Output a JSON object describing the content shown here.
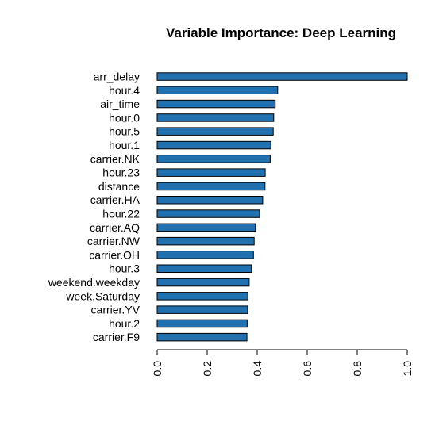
{
  "chart_data": {
    "type": "bar",
    "orientation": "horizontal",
    "title": "Variable Importance: Deep Learning",
    "xlabel": "",
    "ylabel": "",
    "categories": [
      "arr_delay",
      "hour.4",
      "air_time",
      "hour.0",
      "hour.5",
      "hour.1",
      "carrier.NK",
      "hour.23",
      "distance",
      "carrier.HA",
      "hour.22",
      "carrier.AQ",
      "carrier.NW",
      "carrier.OH",
      "hour.3",
      "weekend.weekday",
      "week.Saturday",
      "carrier.YV",
      "hour.2",
      "carrier.F9"
    ],
    "values": [
      1.0,
      0.482,
      0.472,
      0.466,
      0.464,
      0.455,
      0.452,
      0.432,
      0.431,
      0.422,
      0.41,
      0.393,
      0.388,
      0.385,
      0.377,
      0.368,
      0.363,
      0.362,
      0.36,
      0.359
    ],
    "xlim": [
      0,
      1
    ],
    "xticks": [
      0.0,
      0.2,
      0.4,
      0.6,
      0.8,
      1.0
    ],
    "xtick_labels": [
      "0.0",
      "0.2",
      "0.4",
      "0.6",
      "0.8",
      "1.0"
    ],
    "bar_color": "#2171b0",
    "grid": false,
    "legend": "none"
  }
}
